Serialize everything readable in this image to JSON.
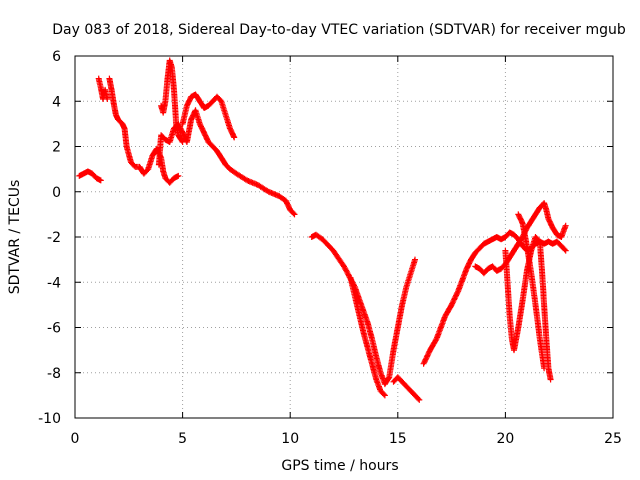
{
  "chart_data": {
    "type": "scatter",
    "title": "Day 083 of 2018, Sidereal Day-to-day VTEC variation (SDTVAR) for receiver mgub",
    "xlabel": "GPS time / hours",
    "ylabel": "SDTVAR / TECUs",
    "xlim": [
      0,
      25
    ],
    "ylim": [
      -10,
      6
    ],
    "xticks": [
      0,
      5,
      10,
      15,
      20,
      25
    ],
    "yticks": [
      -10,
      -8,
      -6,
      -4,
      -2,
      0,
      2,
      4,
      6
    ],
    "grid": true,
    "marker": "+",
    "color": "#ff0000",
    "series": [
      {
        "segments": [
          [
            [
              0.2,
              0.7
            ],
            [
              0.4,
              0.8
            ],
            [
              0.6,
              0.9
            ],
            [
              0.8,
              0.8
            ],
            [
              1.0,
              0.6
            ],
            [
              1.2,
              0.5
            ]
          ],
          [
            [
              1.1,
              5.0
            ],
            [
              1.2,
              4.6
            ],
            [
              1.3,
              4.1
            ],
            [
              1.4,
              4.5
            ],
            [
              1.5,
              4.1
            ]
          ],
          [
            [
              1.6,
              5.0
            ],
            [
              1.7,
              4.5
            ],
            [
              1.8,
              3.9
            ],
            [
              1.9,
              3.4
            ],
            [
              2.0,
              3.2
            ],
            [
              2.2,
              3.0
            ],
            [
              2.3,
              2.8
            ],
            [
              2.4,
              2.0
            ],
            [
              2.6,
              1.3
            ],
            [
              2.8,
              1.1
            ],
            [
              3.0,
              1.1
            ],
            [
              3.2,
              0.8
            ],
            [
              3.4,
              1.0
            ],
            [
              3.6,
              1.6
            ],
            [
              3.8,
              1.9
            ],
            [
              4.0,
              1.5
            ],
            [
              4.1,
              0.9
            ],
            [
              4.2,
              0.6
            ],
            [
              4.4,
              0.4
            ],
            [
              4.6,
              0.6
            ],
            [
              4.8,
              0.7
            ]
          ],
          [
            [
              3.9,
              1.2
            ],
            [
              4.0,
              2.5
            ],
            [
              4.2,
              2.3
            ],
            [
              4.4,
              2.2
            ],
            [
              4.6,
              2.8
            ],
            [
              4.8,
              3.0
            ],
            [
              5.0,
              2.6
            ],
            [
              5.2,
              2.2
            ],
            [
              5.4,
              3.2
            ],
            [
              5.6,
              3.6
            ],
            [
              5.8,
              3.0
            ],
            [
              6.0,
              2.6
            ],
            [
              6.2,
              2.2
            ],
            [
              6.4,
              2.0
            ],
            [
              6.6,
              1.8
            ],
            [
              6.8,
              1.5
            ],
            [
              7.0,
              1.2
            ],
            [
              7.2,
              1.0
            ],
            [
              7.5,
              0.8
            ],
            [
              8.0,
              0.5
            ],
            [
              8.5,
              0.3
            ],
            [
              9.0,
              0.0
            ],
            [
              9.5,
              -0.2
            ],
            [
              9.8,
              -0.4
            ],
            [
              10.0,
              -0.8
            ],
            [
              10.2,
              -1.0
            ]
          ],
          [
            [
              4.0,
              3.8
            ],
            [
              4.1,
              3.5
            ],
            [
              4.2,
              4.0
            ],
            [
              4.3,
              5.0
            ],
            [
              4.4,
              5.8
            ],
            [
              4.5,
              5.5
            ],
            [
              4.6,
              4.5
            ],
            [
              4.7,
              3.0
            ],
            [
              4.8,
              2.5
            ],
            [
              5.0,
              2.2
            ]
          ],
          [
            [
              5.0,
              3.0
            ],
            [
              5.2,
              3.8
            ],
            [
              5.4,
              4.2
            ],
            [
              5.6,
              4.3
            ],
            [
              5.8,
              4.0
            ],
            [
              6.0,
              3.7
            ],
            [
              6.2,
              3.8
            ],
            [
              6.4,
              4.0
            ],
            [
              6.6,
              4.2
            ],
            [
              6.8,
              4.0
            ],
            [
              7.0,
              3.4
            ],
            [
              7.2,
              2.8
            ],
            [
              7.4,
              2.4
            ]
          ],
          [
            [
              11.0,
              -2.0
            ],
            [
              11.2,
              -1.9
            ],
            [
              11.5,
              -2.1
            ],
            [
              12.0,
              -2.6
            ],
            [
              12.5,
              -3.3
            ],
            [
              13.0,
              -4.2
            ],
            [
              13.3,
              -5.0
            ],
            [
              13.6,
              -5.8
            ],
            [
              13.8,
              -6.5
            ],
            [
              14.0,
              -7.3
            ],
            [
              14.2,
              -8.0
            ],
            [
              14.4,
              -8.5
            ],
            [
              14.6,
              -8.2
            ],
            [
              14.8,
              -7.0
            ],
            [
              15.0,
              -6.0
            ],
            [
              15.2,
              -5.0
            ],
            [
              15.4,
              -4.2
            ],
            [
              15.6,
              -3.6
            ],
            [
              15.8,
              -3.0
            ]
          ],
          [
            [
              12.8,
              -3.8
            ],
            [
              13.0,
              -4.6
            ],
            [
              13.2,
              -5.4
            ],
            [
              13.4,
              -6.2
            ],
            [
              13.6,
              -6.9
            ],
            [
              13.8,
              -7.6
            ],
            [
              14.0,
              -8.3
            ],
            [
              14.2,
              -8.8
            ],
            [
              14.4,
              -9.0
            ]
          ],
          [
            [
              14.8,
              -8.4
            ],
            [
              15.0,
              -8.2
            ],
            [
              15.2,
              -8.4
            ],
            [
              15.4,
              -8.6
            ],
            [
              15.6,
              -8.8
            ],
            [
              15.8,
              -9.0
            ],
            [
              16.0,
              -9.2
            ]
          ],
          [
            [
              16.2,
              -7.6
            ],
            [
              16.5,
              -7.0
            ],
            [
              16.8,
              -6.5
            ],
            [
              17.0,
              -6.0
            ],
            [
              17.2,
              -5.5
            ],
            [
              17.5,
              -5.0
            ],
            [
              17.8,
              -4.4
            ],
            [
              18.0,
              -3.9
            ],
            [
              18.2,
              -3.4
            ],
            [
              18.4,
              -3.0
            ],
            [
              18.6,
              -2.7
            ],
            [
              18.8,
              -2.5
            ],
            [
              19.0,
              -2.3
            ],
            [
              19.2,
              -2.2
            ],
            [
              19.4,
              -2.1
            ],
            [
              19.6,
              -2.0
            ],
            [
              19.8,
              -2.1
            ],
            [
              20.0,
              -2.0
            ],
            [
              20.2,
              -1.8
            ],
            [
              20.4,
              -1.9
            ],
            [
              20.6,
              -2.1
            ],
            [
              20.8,
              -2.4
            ],
            [
              21.0,
              -2.6
            ],
            [
              21.2,
              -2.5
            ],
            [
              21.4,
              -2.3
            ],
            [
              21.6,
              -2.2
            ],
            [
              21.8,
              -2.3
            ],
            [
              22.0,
              -2.2
            ],
            [
              22.2,
              -2.3
            ],
            [
              22.4,
              -2.2
            ],
            [
              22.6,
              -2.4
            ],
            [
              22.8,
              -2.6
            ]
          ],
          [
            [
              18.6,
              -3.3
            ],
            [
              18.8,
              -3.4
            ],
            [
              19.0,
              -3.6
            ],
            [
              19.2,
              -3.4
            ],
            [
              19.4,
              -3.3
            ],
            [
              19.6,
              -3.5
            ],
            [
              19.8,
              -3.4
            ],
            [
              20.0,
              -3.2
            ],
            [
              20.2,
              -2.9
            ],
            [
              20.4,
              -2.6
            ],
            [
              20.6,
              -2.3
            ],
            [
              20.8,
              -2.0
            ],
            [
              21.0,
              -1.6
            ],
            [
              21.2,
              -1.3
            ],
            [
              21.4,
              -1.0
            ],
            [
              21.6,
              -0.7
            ],
            [
              21.8,
              -0.5
            ],
            [
              21.9,
              -0.8
            ],
            [
              22.0,
              -1.2
            ],
            [
              22.2,
              -1.6
            ],
            [
              22.4,
              -1.9
            ],
            [
              22.6,
              -2.0
            ],
            [
              22.8,
              -1.5
            ]
          ],
          [
            [
              20.0,
              -2.6
            ],
            [
              20.1,
              -4.0
            ],
            [
              20.2,
              -5.5
            ],
            [
              20.3,
              -6.5
            ],
            [
              20.4,
              -7.0
            ],
            [
              20.6,
              -6.0
            ],
            [
              20.8,
              -4.8
            ],
            [
              21.0,
              -3.5
            ],
            [
              21.2,
              -2.6
            ],
            [
              21.4,
              -2.0
            ],
            [
              21.6,
              -2.2
            ],
            [
              21.7,
              -3.5
            ],
            [
              21.8,
              -5.0
            ],
            [
              21.9,
              -6.5
            ],
            [
              22.0,
              -7.8
            ],
            [
              22.1,
              -8.3
            ]
          ],
          [
            [
              20.6,
              -1.0
            ],
            [
              20.8,
              -1.4
            ],
            [
              21.0,
              -2.4
            ],
            [
              21.2,
              -3.6
            ],
            [
              21.4,
              -5.0
            ],
            [
              21.6,
              -6.5
            ],
            [
              21.8,
              -7.8
            ]
          ]
        ]
      }
    ]
  }
}
